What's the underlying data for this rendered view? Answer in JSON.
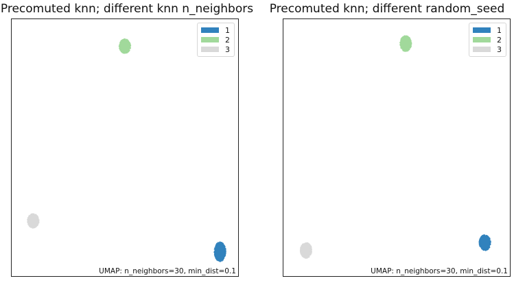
{
  "chart_data": [
    {
      "type": "scatter",
      "title": "Precomuted knn; different knn n_neighbors",
      "annotation": "UMAP: n_neighbors=30, min_dist=0.1",
      "grid": false,
      "legend_position": "top-right",
      "legend": [
        {
          "label": "1",
          "color": "#3182bd"
        },
        {
          "label": "2",
          "color": "#a1d99b"
        },
        {
          "label": "3",
          "color": "#d9d9d9"
        }
      ],
      "xlim": [
        0,
        1
      ],
      "ylim": [
        0,
        1
      ],
      "series": [
        {
          "label": "1",
          "color": "#3182bd",
          "center": [
            0.92,
            0.095
          ],
          "spread": [
            0.05,
            0.075
          ]
        },
        {
          "label": "2",
          "color": "#a1d99b",
          "center": [
            0.5,
            0.895
          ],
          "spread": [
            0.05,
            0.055
          ]
        },
        {
          "label": "3",
          "color": "#d9d9d9",
          "center": [
            0.095,
            0.215
          ],
          "spread": [
            0.05,
            0.055
          ]
        }
      ]
    },
    {
      "type": "scatter",
      "title": "Precomuted knn; different random_seed",
      "annotation": "UMAP: n_neighbors=30, min_dist=0.1",
      "grid": false,
      "legend_position": "top-right",
      "legend": [
        {
          "label": "1",
          "color": "#3182bd"
        },
        {
          "label": "2",
          "color": "#a1d99b"
        },
        {
          "label": "3",
          "color": "#d9d9d9"
        }
      ],
      "xlim": [
        0,
        1
      ],
      "ylim": [
        0,
        1
      ],
      "series": [
        {
          "label": "1",
          "color": "#3182bd",
          "center": [
            0.89,
            0.13
          ],
          "spread": [
            0.05,
            0.06
          ]
        },
        {
          "label": "2",
          "color": "#a1d99b",
          "center": [
            0.54,
            0.905
          ],
          "spread": [
            0.05,
            0.06
          ]
        },
        {
          "label": "3",
          "color": "#d9d9d9",
          "center": [
            0.1,
            0.1
          ],
          "spread": [
            0.05,
            0.06
          ]
        }
      ]
    }
  ]
}
